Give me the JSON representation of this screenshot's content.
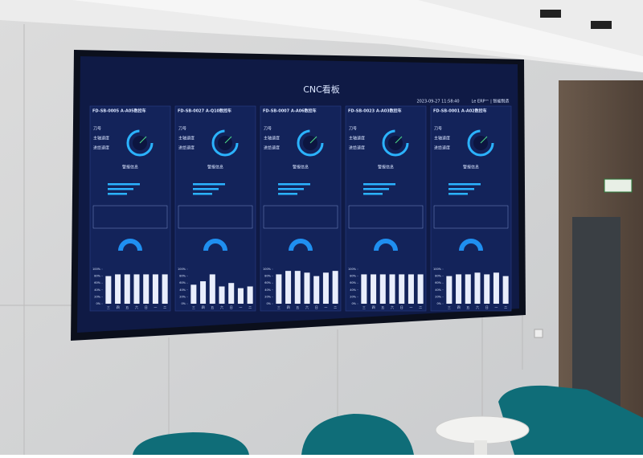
{
  "screen": {
    "title": "CNC看板",
    "timestamp": "2023-09-27 11:58:40",
    "brand": "Le ERP™ | 智能制造",
    "field_labels": [
      "刀号",
      "主轴速度",
      "进给速度"
    ],
    "alarm_label": "警报信息",
    "days": [
      "三",
      "四",
      "五",
      "六",
      "日",
      "一",
      "二"
    ],
    "ylim": [
      0,
      100
    ],
    "yticks": [
      {
        "value": 0,
        "label": "0%"
      },
      {
        "value": 20,
        "label": "20%"
      },
      {
        "value": 40,
        "label": "40%"
      },
      {
        "value": 60,
        "label": "60%"
      },
      {
        "value": 80,
        "label": "80%"
      },
      {
        "value": 100,
        "label": "100%"
      }
    ],
    "panels": [
      {
        "name": "FD-SB-0005 A-A05数控车",
        "values": [
          80,
          85,
          85,
          85,
          85,
          85,
          85
        ]
      },
      {
        "name": "FD-SB-0027 A-Q10数控车",
        "values": [
          55,
          65,
          85,
          50,
          60,
          45,
          50
        ]
      },
      {
        "name": "FD-SB-0007 A-A06数控车",
        "values": [
          85,
          95,
          95,
          90,
          80,
          90,
          95
        ]
      },
      {
        "name": "FD-SB-0023 A-A03数控车",
        "values": [
          85,
          85,
          85,
          85,
          85,
          85,
          85
        ]
      },
      {
        "name": "FD-SB-0001 A-A02数控车",
        "values": [
          80,
          85,
          85,
          90,
          85,
          90,
          80
        ]
      }
    ]
  }
}
